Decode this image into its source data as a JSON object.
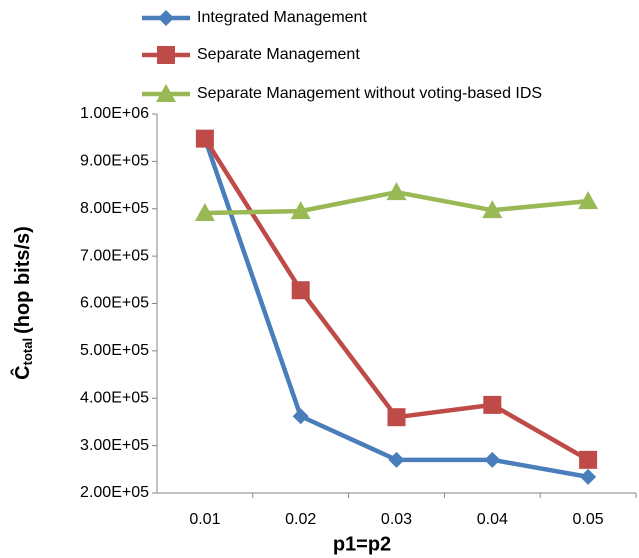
{
  "chart_data": {
    "type": "line",
    "x_label": "p1=p2",
    "y_label": "Ĉ",
    "y_label_subscript": "total",
    "y_label_unit": "(hop bits/s)",
    "categories": [
      "0.01",
      "0.02",
      "0.03",
      "0.04",
      "0.05"
    ],
    "series": [
      {
        "name": "Integrated Management",
        "color": "#4a7ebb",
        "marker": "diamond",
        "values": [
          948000,
          362000,
          270000,
          270000,
          234000
        ]
      },
      {
        "name": "Separate Management",
        "color": "#be4b48",
        "marker": "square",
        "values": [
          948000,
          628000,
          360000,
          386000,
          270000
        ]
      },
      {
        "name": "Separate Management without voting-based IDS",
        "color": "#98b954",
        "marker": "triangle",
        "values": [
          791000,
          795000,
          835000,
          797000,
          816000
        ]
      }
    ],
    "ylim": [
      200000,
      1000000
    ],
    "yticks": [
      {
        "value": 200000,
        "label": "2.00E+05"
      },
      {
        "value": 300000,
        "label": "3.00E+05"
      },
      {
        "value": 400000,
        "label": "4.00E+05"
      },
      {
        "value": 500000,
        "label": "5.00E+05"
      },
      {
        "value": 600000,
        "label": "6.00E+05"
      },
      {
        "value": 700000,
        "label": "7.00E+05"
      },
      {
        "value": 800000,
        "label": "8.00E+05"
      },
      {
        "value": 900000,
        "label": "9.00E+05"
      },
      {
        "value": 1000000,
        "label": "1.00E+06"
      }
    ],
    "grid": false,
    "legend": "top"
  }
}
